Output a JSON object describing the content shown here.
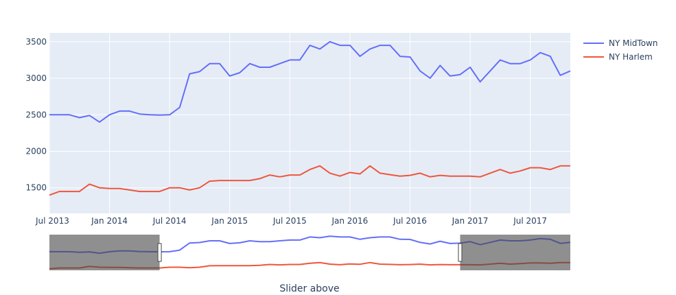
{
  "chart_data": {
    "type": "line",
    "title": "",
    "xlabel": "Slider above",
    "ylabel": "",
    "x_start": "2013-07",
    "x_tick_labels": [
      "Jul 2013",
      "Jan 2014",
      "Jul 2014",
      "Jan 2015",
      "Jul 2015",
      "Jan 2016",
      "Jul 2016",
      "Jan 2017",
      "Jul 2017"
    ],
    "y_ticks": [
      1500,
      2000,
      2500,
      3000,
      3500
    ],
    "ylim": [
      1150,
      3620
    ],
    "grid": true,
    "legend_position": "top-right",
    "range_slider": {
      "visible": true,
      "selected_range": [
        "2014-06",
        "2016-12"
      ]
    },
    "series": [
      {
        "name": "NY MidTown",
        "color": "#636efa",
        "values": [
          2500,
          2500,
          2500,
          2460,
          2490,
          2400,
          2500,
          2550,
          2550,
          2510,
          2500,
          2495,
          2500,
          2600,
          3060,
          3090,
          3200,
          3200,
          3030,
          3075,
          3200,
          3150,
          3150,
          3200,
          3250,
          3250,
          3450,
          3400,
          3500,
          3450,
          3450,
          3300,
          3400,
          3450,
          3450,
          3300,
          3290,
          3100,
          3000,
          3175,
          3030,
          3050,
          3150,
          2950,
          3100,
          3250,
          3200,
          3200,
          3250,
          3350,
          3300,
          3040,
          3100
        ]
      },
      {
        "name": "NY Harlem",
        "color": "#ef553b",
        "values": [
          1400,
          1450,
          1450,
          1450,
          1550,
          1500,
          1490,
          1490,
          1470,
          1450,
          1450,
          1450,
          1500,
          1500,
          1470,
          1500,
          1590,
          1600,
          1600,
          1600,
          1600,
          1625,
          1675,
          1650,
          1675,
          1675,
          1750,
          1800,
          1700,
          1660,
          1710,
          1690,
          1800,
          1700,
          1680,
          1660,
          1670,
          1700,
          1650,
          1670,
          1660,
          1660,
          1660,
          1650,
          1700,
          1750,
          1700,
          1730,
          1775,
          1775,
          1750,
          1800,
          1800
        ]
      }
    ]
  }
}
